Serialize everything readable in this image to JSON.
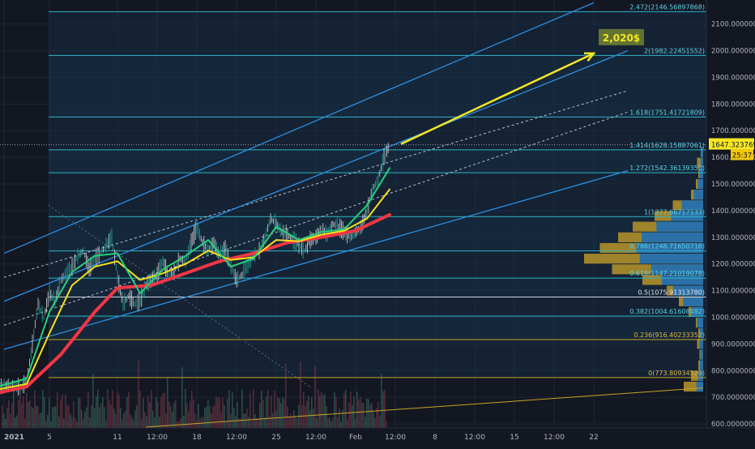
{
  "chart_data": {
    "type": "line",
    "title": "",
    "theme": "dark",
    "colors": {
      "background": "#131722",
      "grid": "#1f2533",
      "axis_text": "#b2b5be",
      "fib_line": "#2fb5c8",
      "fib_label": "#5fd3e6",
      "fib_zone": "#17344f",
      "channel": "#2d8fe0",
      "ema_red": "#f23645",
      "ma_yellow": "#f7e11b",
      "ma_green": "#26d07c",
      "ma_blue": "#2196f3",
      "candles": "#d7d7d7",
      "projection_arrow": "#f5e625",
      "target_box": "#6b7c32",
      "volume_profile_up": "#1e6fb5",
      "volume_profile_down": "#b8952a",
      "price_tag": "#f5e625",
      "countdown_tag": "#f0c60b"
    },
    "x_axis": {
      "range": [
        "2021-01-01 00:00",
        "2021-02-25 00:00"
      ],
      "ticks": [
        {
          "label": "2021",
          "t": "2021-01-01 00:00",
          "bold": true
        },
        {
          "label": "5",
          "t": "2021-01-05 00:00"
        },
        {
          "label": "11",
          "t": "2021-01-11 00:00"
        },
        {
          "label": "12:00",
          "t": "2021-01-14 12:00"
        },
        {
          "label": "18",
          "t": "2021-01-18 00:00"
        },
        {
          "label": "12:00",
          "t": "2021-01-21 12:00"
        },
        {
          "label": "25",
          "t": "2021-01-25 00:00"
        },
        {
          "label": "12:00",
          "t": "2021-01-28 12:00"
        },
        {
          "label": "Feb",
          "t": "2021-02-01 00:00"
        },
        {
          "label": "12:00",
          "t": "2021-02-04 12:00"
        },
        {
          "label": "8",
          "t": "2021-02-08 00:00"
        },
        {
          "label": "12:00",
          "t": "2021-02-11 12:00"
        },
        {
          "label": "15",
          "t": "2021-02-15 00:00"
        },
        {
          "label": "12:00",
          "t": "2021-02-18 12:00"
        },
        {
          "label": "22",
          "t": "2021-02-22 00:00"
        }
      ]
    },
    "y_axis": {
      "ylim": [
        585,
        2175
      ],
      "ticks": [
        {
          "label": "2100.00000000",
          "v": 2100
        },
        {
          "label": "2000.00000000",
          "v": 2000
        },
        {
          "label": "1900.00000000",
          "v": 1900
        },
        {
          "label": "1800.00000000",
          "v": 1800
        },
        {
          "label": "1700.00000000",
          "v": 1700
        },
        {
          "label": "1600.00000000",
          "v": 1600
        },
        {
          "label": "1500.00000000",
          "v": 1500
        },
        {
          "label": "1400.00000000",
          "v": 1400
        },
        {
          "label": "1300.00000000",
          "v": 1300
        },
        {
          "label": "1200.00000000",
          "v": 1200
        },
        {
          "label": "1100.00000000",
          "v": 1100
        },
        {
          "label": "1000.00000000",
          "v": 1000
        },
        {
          "label": "900.00000000",
          "v": 900
        },
        {
          "label": "800.00000000",
          "v": 800
        },
        {
          "label": "700.00000000",
          "v": 700
        },
        {
          "label": "600.00000000",
          "v": 600
        }
      ]
    },
    "last_price": {
      "label": "1647.32376929",
      "v": 1647.32
    },
    "countdown": {
      "label": "25:37"
    },
    "fib_levels": [
      {
        "label": "2.472(2146.56897868)",
        "v": 2146.57
      },
      {
        "label": "2(1982.22451552)",
        "v": 1982.22
      },
      {
        "label": "1.618(1751.41721809)",
        "v": 1751.42
      },
      {
        "label": "1.414(1628.15887061)",
        "v": 1628.16
      },
      {
        "label": "1.272(1542.36139350)",
        "v": 1542.36
      },
      {
        "label": "1(1377.66717133)",
        "v": 1377.67
      },
      {
        "label": "0.786(1248.71650716)",
        "v": 1248.72
      },
      {
        "label": "0.618(1147.21019078)",
        "v": 1147.21
      },
      {
        "label": "0.5(1075.91313780)",
        "v": 1075.91,
        "white": true
      },
      {
        "label": "0.382(1004.61608482)",
        "v": 1004.62
      },
      {
        "label": "0.236(916.40233352)",
        "v": 916.4,
        "gold": true
      },
      {
        "label": "0(773.80934529)",
        "v": 773.81,
        "gold": true
      }
    ],
    "price_path": [
      [
        "2020-12-31 00:00",
        737
      ],
      [
        "2021-01-01 12:00",
        745
      ],
      [
        "2021-01-02 12:00",
        738
      ],
      [
        "2021-01-03 00:00",
        760
      ],
      [
        "2021-01-03 12:00",
        900
      ],
      [
        "2021-01-04 00:00",
        1050
      ],
      [
        "2021-01-04 12:00",
        1000
      ],
      [
        "2021-01-05 00:00",
        1090
      ],
      [
        "2021-01-05 12:00",
        1060
      ],
      [
        "2021-01-06 00:00",
        1140
      ],
      [
        "2021-01-07 00:00",
        1190
      ],
      [
        "2021-01-07 12:00",
        1230
      ],
      [
        "2021-01-08 00:00",
        1250
      ],
      [
        "2021-01-08 12:00",
        1180
      ],
      [
        "2021-01-09 00:00",
        1220
      ],
      [
        "2021-01-09 12:00",
        1240
      ],
      [
        "2021-01-10 00:00",
        1270
      ],
      [
        "2021-01-10 12:00",
        1300
      ],
      [
        "2021-01-11 00:00",
        1150
      ],
      [
        "2021-01-11 12:00",
        1050
      ],
      [
        "2021-01-12 00:00",
        1080
      ],
      [
        "2021-01-12 12:00",
        1050
      ],
      [
        "2021-01-13 00:00",
        1060
      ],
      [
        "2021-01-13 12:00",
        1120
      ],
      [
        "2021-01-14 12:00",
        1160
      ],
      [
        "2021-01-15 00:00",
        1210
      ],
      [
        "2021-01-15 12:00",
        1160
      ],
      [
        "2021-01-16 00:00",
        1170
      ],
      [
        "2021-01-16 12:00",
        1220
      ],
      [
        "2021-01-17 00:00",
        1210
      ],
      [
        "2021-01-17 12:00",
        1280
      ],
      [
        "2021-01-18 00:00",
        1340
      ],
      [
        "2021-01-18 12:00",
        1280
      ],
      [
        "2021-01-19 00:00",
        1250
      ],
      [
        "2021-01-19 12:00",
        1280
      ],
      [
        "2021-01-20 00:00",
        1230
      ],
      [
        "2021-01-20 12:00",
        1260
      ],
      [
        "2021-01-21 00:00",
        1190
      ],
      [
        "2021-01-21 12:00",
        1140
      ],
      [
        "2021-01-22 00:00",
        1160
      ],
      [
        "2021-01-22 12:00",
        1200
      ],
      [
        "2021-01-23 00:00",
        1230
      ],
      [
        "2021-01-23 12:00",
        1250
      ],
      [
        "2021-01-24 00:00",
        1300
      ],
      [
        "2021-01-24 12:00",
        1370
      ],
      [
        "2021-01-25 00:00",
        1350
      ],
      [
        "2021-01-25 12:00",
        1320
      ],
      [
        "2021-01-26 00:00",
        1310
      ],
      [
        "2021-01-26 12:00",
        1290
      ],
      [
        "2021-01-27 00:00",
        1270
      ],
      [
        "2021-01-27 12:00",
        1250
      ],
      [
        "2021-01-28 00:00",
        1290
      ],
      [
        "2021-01-28 12:00",
        1300
      ],
      [
        "2021-01-29 00:00",
        1330
      ],
      [
        "2021-01-29 12:00",
        1310
      ],
      [
        "2021-01-30 00:00",
        1350
      ],
      [
        "2021-01-30 12:00",
        1340
      ],
      [
        "2021-01-31 00:00",
        1320
      ],
      [
        "2021-01-31 12:00",
        1300
      ],
      [
        "2021-02-01 00:00",
        1320
      ],
      [
        "2021-02-01 12:00",
        1340
      ],
      [
        "2021-02-02 00:00",
        1400
      ],
      [
        "2021-02-02 12:00",
        1480
      ],
      [
        "2021-02-03 00:00",
        1520
      ],
      [
        "2021-02-03 12:00",
        1600
      ],
      [
        "2021-02-04 00:00",
        1647
      ]
    ],
    "series": [
      {
        "name": "",
        "color": "#f23645",
        "width": 4,
        "x": [
          "2020-12-31 00:00",
          "2021-01-03 00:00",
          "2021-01-06 00:00",
          "2021-01-09 00:00",
          "2021-01-11 00:00",
          "2021-01-14 00:00",
          "2021-01-17 00:00",
          "2021-01-20 00:00",
          "2021-01-23 00:00",
          "2021-01-26 00:00",
          "2021-01-29 00:00",
          "2021-02-01 00:00",
          "2021-02-03 00:00",
          "2021-02-04 00:00"
        ],
        "y": [
          712,
          740,
          860,
          1020,
          1110,
          1120,
          1165,
          1210,
          1240,
          1280,
          1300,
          1325,
          1365,
          1385
        ]
      },
      {
        "name": "",
        "color": "#f7e11b",
        "width": 2,
        "x": [
          "2020-12-31 00:00",
          "2021-01-03 00:00",
          "2021-01-05 00:00",
          "2021-01-07 00:00",
          "2021-01-09 00:00",
          "2021-01-11 00:00",
          "2021-01-13 00:00",
          "2021-01-15 00:00",
          "2021-01-17 00:00",
          "2021-01-19 00:00",
          "2021-01-21 00:00",
          "2021-01-23 00:00",
          "2021-01-25 00:00",
          "2021-01-27 00:00",
          "2021-01-29 00:00",
          "2021-01-31 00:00",
          "2021-02-02 00:00",
          "2021-02-04 00:00"
        ],
        "y": [
          725,
          750,
          940,
          1120,
          1190,
          1210,
          1140,
          1165,
          1200,
          1250,
          1215,
          1225,
          1290,
          1285,
          1310,
          1325,
          1370,
          1480
        ]
      },
      {
        "name": "",
        "color": "#26d07c",
        "width": 2,
        "x": [
          "2020-12-31 00:00",
          "2021-01-03 00:00",
          "2021-01-05 00:00",
          "2021-01-07 00:00",
          "2021-01-09 00:00",
          "2021-01-11 00:00",
          "2021-01-13 00:00",
          "2021-01-15 00:00",
          "2021-01-17 00:00",
          "2021-01-19 00:00",
          "2021-01-21 00:00",
          "2021-01-23 00:00",
          "2021-01-25 00:00",
          "2021-01-27 00:00",
          "2021-01-29 00:00",
          "2021-01-31 00:00",
          "2021-02-02 00:00",
          "2021-02-04 00:00"
        ],
        "y": [
          735,
          770,
          1020,
          1170,
          1230,
          1240,
          1090,
          1180,
          1230,
          1290,
          1190,
          1220,
          1340,
          1290,
          1320,
          1330,
          1420,
          1560
        ]
      }
    ],
    "channel_lines": [
      {
        "from": [
          "2021-01-01 00:00",
          1240
        ],
        "to": [
          "2021-02-22 00:00",
          2180
        ],
        "style": "solid"
      },
      {
        "from": [
          "2021-01-01 00:00",
          1150
        ],
        "to": [
          "2021-02-25 00:00",
          1850
        ],
        "style": "dashed"
      },
      {
        "from": [
          "2021-01-01 00:00",
          1060
        ],
        "to": [
          "2021-02-25 00:00",
          2000
        ],
        "style": "solid"
      },
      {
        "from": [
          "2021-01-01 00:00",
          970
        ],
        "to": [
          "2021-02-25 00:00",
          1770
        ],
        "style": "dashed"
      },
      {
        "from": [
          "2021-01-01 00:00",
          880
        ],
        "to": [
          "2021-02-25 00:00",
          1550
        ],
        "style": "solid"
      }
    ],
    "projection": {
      "from": [
        "2021-02-05 00:00",
        1650
      ],
      "to": [
        "2021-02-22 00:00",
        1990
      ],
      "label": "2,020$"
    },
    "volume_profile": {
      "bins_v": [
        740,
        780,
        820,
        860,
        900,
        940,
        980,
        1020,
        1060,
        1100,
        1140,
        1180,
        1220,
        1260,
        1300,
        1340,
        1380,
        1420,
        1460,
        1500,
        1540,
        1580,
        1620
      ],
      "up": [
        0.1,
        0.08,
        0.05,
        0.04,
        0.06,
        0.05,
        0.09,
        0.18,
        0.3,
        0.45,
        0.62,
        0.78,
        0.95,
        1.0,
        0.92,
        0.7,
        0.48,
        0.32,
        0.14,
        0.08,
        0.06,
        0.04,
        0.03
      ],
      "down": [
        0.16,
        0.1,
        0.04,
        0.03,
        0.05,
        0.04,
        0.06,
        0.12,
        0.2,
        0.3,
        0.5,
        0.75,
        0.98,
        0.85,
        0.7,
        0.58,
        0.4,
        0.25,
        0.1,
        0.06,
        0.04,
        0.05,
        0.02
      ]
    }
  }
}
